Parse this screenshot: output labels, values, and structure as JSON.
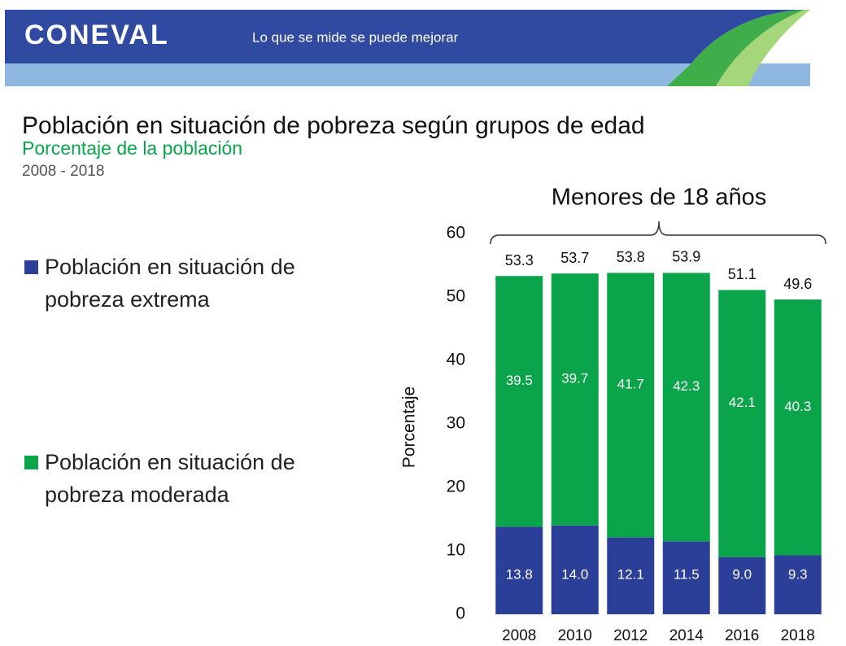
{
  "header": {
    "logo": "CONEVAL",
    "tagline": "Lo que se mide se puede mejorar"
  },
  "chart_data": {
    "type": "stacked-bar",
    "title": "Población en situación de pobreza según grupos de edad",
    "subtitle": "Porcentaje de la población",
    "period": "2008 - 2018",
    "annotation": "Menores de 18 años",
    "y_label": "Porcentaje",
    "categories": [
      "2008",
      "2010",
      "2012",
      "2014",
      "2016",
      "2018"
    ],
    "series": [
      {
        "name": "Población en situación de pobreza extrema",
        "color": "#2b3f99",
        "values": [
          13.8,
          14.0,
          12.1,
          11.5,
          9.0,
          9.3
        ],
        "value_labels": [
          "13.8",
          "14.0",
          "12.1",
          "11.5",
          "9.0",
          "9.3"
        ]
      },
      {
        "name": "Población en situación de pobreza moderada",
        "color": "#0aa54a",
        "values": [
          39.5,
          39.7,
          41.7,
          42.3,
          42.1,
          40.3
        ]
      }
    ],
    "totals": [
      53.3,
      53.7,
      53.8,
      53.9,
      51.1,
      49.6
    ],
    "ylim": [
      0,
      60
    ],
    "yticks": [
      0,
      10,
      20,
      30,
      40,
      50,
      60
    ],
    "legend": "left"
  }
}
